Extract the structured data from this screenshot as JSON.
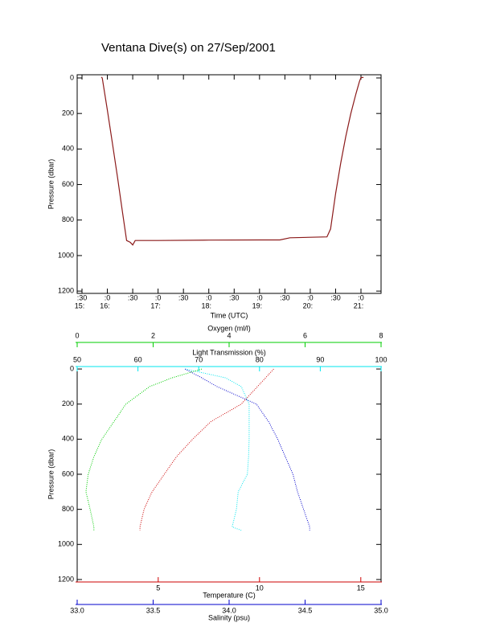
{
  "chart_data": [
    {
      "type": "line",
      "title": "Ventana Dive(s) on 27/Sep/2001",
      "xlabel": "Time (UTC)",
      "ylabel": "Pressure (dbar)",
      "color": "#8b1a1a",
      "x": [
        15.88,
        15.9,
        16.0,
        16.1,
        16.2,
        16.3,
        16.38,
        16.45,
        16.5,
        16.55,
        17.0,
        18.0,
        19.0,
        19.4,
        19.6,
        20.0,
        20.33,
        20.4,
        20.5,
        20.6,
        20.7,
        20.8,
        20.9,
        20.97,
        21.0,
        21.05
      ],
      "values": [
        -5,
        0,
        180,
        370,
        560,
        760,
        915,
        925,
        940,
        915,
        915,
        913,
        912,
        912,
        900,
        897,
        895,
        850,
        650,
        480,
        330,
        200,
        90,
        20,
        -2,
        -3
      ],
      "xlim": [
        15.405,
        21.396
      ],
      "ylim": [
        -18,
        1213
      ],
      "y_reversed": true,
      "xticks": [
        {
          "value": 15.5,
          "label": ":30"
        },
        {
          "value": 16,
          "label": ":0"
        },
        {
          "value": 16.5,
          "label": ":30"
        },
        {
          "value": 17,
          "label": ":0"
        },
        {
          "value": 17.5,
          "label": ":30"
        },
        {
          "value": 18,
          "label": ":0"
        },
        {
          "value": 18.5,
          "label": ":30"
        },
        {
          "value": 19,
          "label": ":0"
        },
        {
          "value": 19.5,
          "label": ":30"
        },
        {
          "value": 20,
          "label": ":0"
        },
        {
          "value": 20.5,
          "label": ":30"
        },
        {
          "value": 21,
          "label": ":0"
        }
      ],
      "xticks_hours": [
        {
          "value": 15.5,
          "label": "15:"
        },
        {
          "value": 16,
          "label": "16:"
        },
        {
          "value": 17,
          "label": "17:"
        },
        {
          "value": 18,
          "label": "18:"
        },
        {
          "value": 19,
          "label": "19:"
        },
        {
          "value": 20,
          "label": "20:"
        },
        {
          "value": 21,
          "label": "21:"
        }
      ],
      "yticks": [
        0,
        200,
        400,
        600,
        800,
        1000,
        1200
      ]
    },
    {
      "type": "profile",
      "ylabel": "Pressure (dbar)",
      "y": [
        0,
        50,
        100,
        200,
        300,
        400,
        500,
        600,
        700,
        800,
        900,
        920
      ],
      "ylim": [
        -14,
        1214
      ],
      "y_reversed": true,
      "yticks": [
        0,
        200,
        400,
        600,
        800,
        1000,
        1200
      ],
      "axes": [
        {
          "label": "Light Transmission (%)",
          "side": "top",
          "color": "#00e5ee",
          "xlim": [
            50,
            100
          ],
          "xticks": [
            50,
            60,
            70,
            80,
            90,
            100
          ],
          "values": [
            67.8,
            74.4,
            77,
            78.3,
            78.3,
            78.3,
            78.2,
            78,
            76.5,
            76.2,
            75.5,
            77
          ]
        },
        {
          "label": "Oxygen (ml/l)",
          "side": "top",
          "color": "#00cc00",
          "xlim": [
            0,
            8
          ],
          "xticks": [
            0,
            2,
            4,
            6,
            8
          ],
          "values": [
            3.28,
            2.5,
            1.91,
            1.28,
            0.97,
            0.65,
            0.44,
            0.29,
            0.23,
            0.34,
            0.44,
            0.44
          ]
        },
        {
          "label": "Temperature (C)",
          "side": "bottom",
          "color": "#cc0000",
          "xlim": [
            1,
            16
          ],
          "xticks": [
            5,
            10,
            15
          ],
          "values": [
            10.7,
            10.3,
            9.9,
            9.1,
            7.6,
            6.7,
            5.9,
            5.3,
            4.7,
            4.3,
            4.1,
            4.1
          ]
        },
        {
          "label": "Salinity (psu)",
          "side": "bottom",
          "color": "#0000cc",
          "xlim": [
            33,
            35
          ],
          "xticks": [
            {
              "value": 33,
              "label": "33.0"
            },
            33.5,
            {
              "value": 34,
              "label": "34.0"
            },
            34.5,
            {
              "value": 35,
              "label": "35.0"
            }
          ],
          "values": [
            33.71,
            33.82,
            33.92,
            34.18,
            34.26,
            34.32,
            34.37,
            34.42,
            34.45,
            34.49,
            34.53,
            34.53
          ]
        }
      ]
    }
  ]
}
